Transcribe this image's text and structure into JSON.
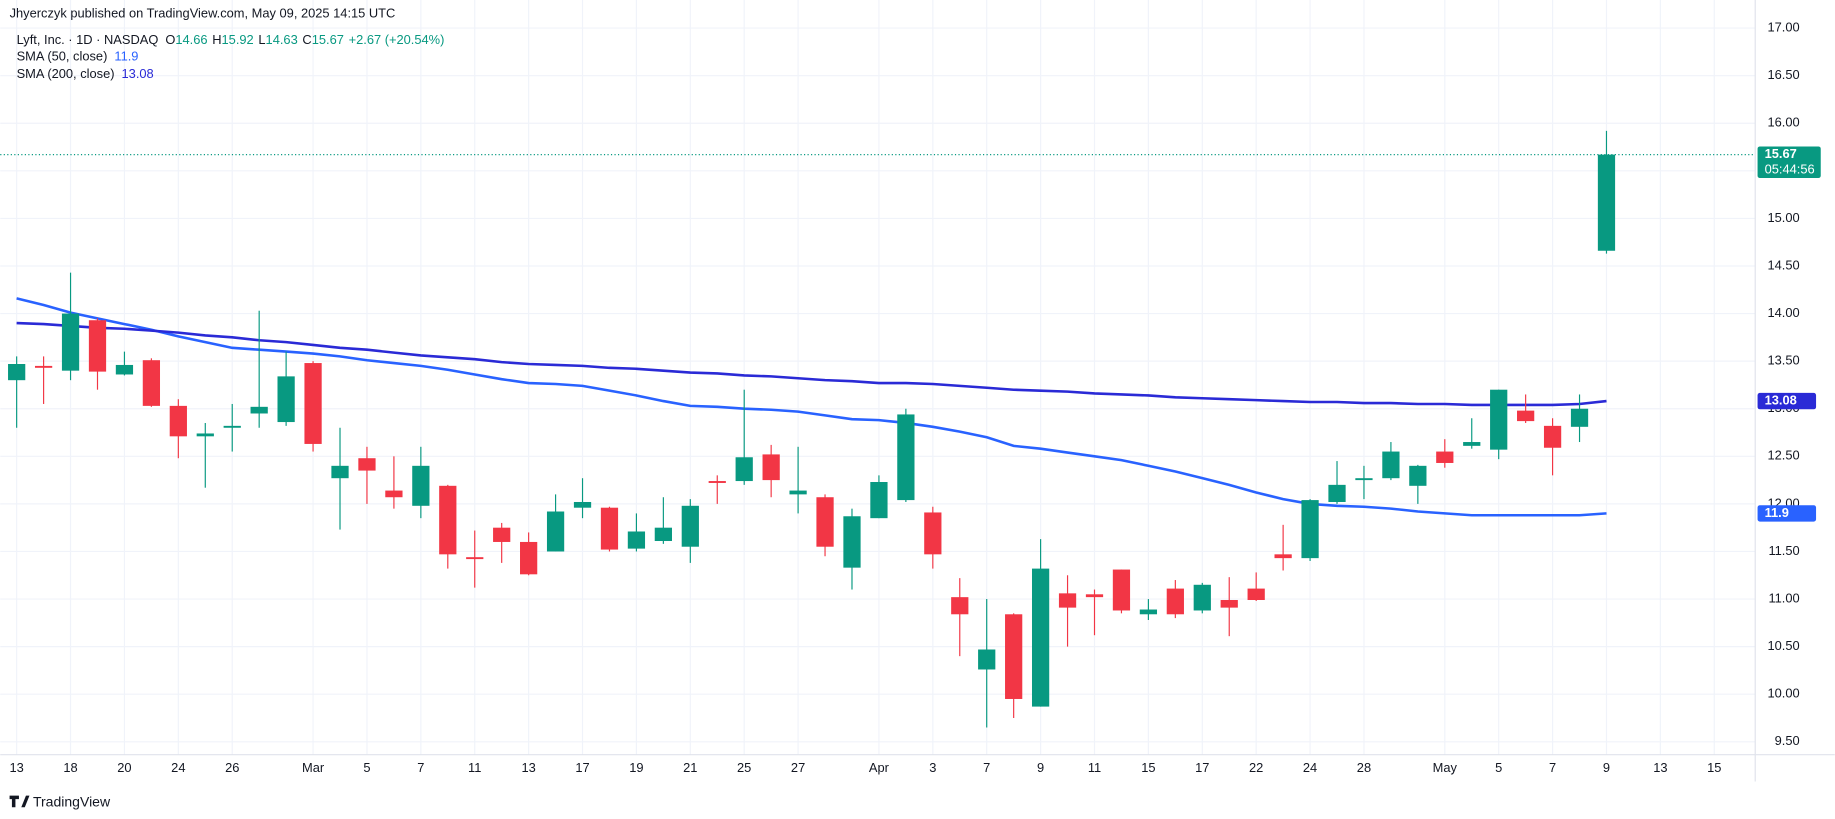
{
  "chart_data": {
    "type": "candlestick",
    "publisher_note": "Jhyerczyk published on TradingView.com, May 09, 2025 14:15 UTC",
    "symbol": "Lyft, Inc. · 1D · NASDAQ",
    "ohlc_labels": [
      "O",
      "H",
      "L",
      "C"
    ],
    "change": "+2.67 (+20.54%)",
    "countdown": "05:44:56",
    "brand": "TradingView",
    "up_color": "#089981",
    "down_color": "#f23645",
    "open": [
      13.3,
      13.45,
      13.4,
      13.93,
      13.36,
      13.51,
      13.03,
      12.71,
      12.8,
      12.95,
      12.86,
      13.48,
      12.27,
      12.48,
      12.14,
      11.98,
      12.19,
      11.44,
      11.75,
      11.6,
      11.5,
      11.96,
      11.96,
      11.53,
      11.61,
      11.55,
      12.24,
      12.24,
      12.52,
      12.1,
      12.07,
      11.33,
      11.85,
      12.04,
      11.91,
      11.02,
      10.26,
      10.84,
      9.87,
      11.06,
      11.05,
      11.31,
      10.84,
      11.11,
      10.88,
      10.99,
      11.11,
      11.47,
      11.43,
      12.02,
      12.25,
      12.27,
      12.19,
      12.55,
      12.61,
      12.57,
      12.98,
      12.82,
      12.81,
      14.66
    ],
    "high": [
      13.55,
      13.55,
      14.43,
      13.95,
      13.6,
      13.53,
      13.1,
      12.85,
      13.05,
      14.03,
      13.6,
      13.5,
      12.8,
      12.6,
      12.5,
      12.6,
      12.2,
      11.72,
      11.8,
      11.7,
      12.1,
      12.27,
      11.97,
      11.9,
      12.07,
      12.05,
      12.3,
      13.2,
      12.62,
      12.6,
      12.1,
      11.95,
      12.3,
      13.0,
      11.97,
      11.22,
      11.0,
      10.85,
      11.63,
      11.25,
      11.1,
      11.31,
      11.0,
      11.2,
      11.17,
      11.23,
      11.28,
      11.78,
      12.05,
      12.45,
      12.4,
      12.65,
      12.41,
      12.68,
      12.9,
      13.2,
      13.15,
      12.9,
      13.15,
      15.92
    ],
    "low": [
      12.8,
      13.05,
      13.3,
      13.2,
      13.35,
      13.02,
      12.48,
      12.17,
      12.55,
      12.8,
      12.82,
      12.55,
      11.73,
      12.0,
      11.95,
      11.85,
      11.32,
      11.12,
      11.38,
      11.25,
      11.5,
      11.85,
      11.5,
      11.5,
      11.58,
      11.38,
      12.0,
      12.2,
      12.07,
      11.9,
      11.45,
      11.1,
      11.85,
      12.02,
      11.32,
      10.4,
      9.65,
      9.75,
      9.87,
      10.5,
      10.62,
      10.85,
      10.78,
      10.8,
      10.85,
      10.61,
      10.98,
      11.3,
      11.4,
      12.0,
      12.05,
      12.25,
      12.0,
      12.38,
      12.58,
      12.47,
      12.85,
      12.3,
      12.65,
      14.63
    ],
    "close": [
      13.47,
      13.43,
      14.0,
      13.39,
      13.46,
      13.03,
      12.71,
      12.74,
      12.82,
      13.02,
      13.34,
      12.63,
      12.4,
      12.35,
      12.07,
      12.4,
      11.47,
      11.42,
      11.6,
      11.26,
      11.92,
      12.02,
      11.52,
      11.71,
      11.75,
      11.98,
      12.22,
      12.49,
      12.25,
      12.14,
      11.55,
      11.87,
      12.23,
      12.94,
      11.47,
      10.84,
      10.47,
      9.95,
      11.32,
      10.91,
      11.02,
      10.88,
      10.89,
      10.84,
      11.15,
      10.91,
      10.99,
      11.43,
      12.04,
      12.2,
      12.27,
      12.55,
      12.4,
      12.43,
      12.65,
      13.2,
      12.87,
      12.59,
      13.0,
      15.67
    ],
    "overlays": [
      {
        "name": "SMA (50, close)",
        "color": "#2962ff",
        "values": [
          14.16,
          14.09,
          14.01,
          13.95,
          13.89,
          13.83,
          13.76,
          13.7,
          13.64,
          13.62,
          13.6,
          13.58,
          13.55,
          13.51,
          13.48,
          13.45,
          13.41,
          13.36,
          13.31,
          13.27,
          13.26,
          13.24,
          13.19,
          13.14,
          13.08,
          13.03,
          13.02,
          13.0,
          12.99,
          12.97,
          12.93,
          12.89,
          12.88,
          12.85,
          12.81,
          12.76,
          12.7,
          12.61,
          12.58,
          12.54,
          12.5,
          12.46,
          12.4,
          12.34,
          12.27,
          12.2,
          12.12,
          12.05,
          12.0,
          11.98,
          11.97,
          11.95,
          11.92,
          11.9,
          11.88,
          11.88,
          11.88,
          11.88,
          11.88,
          11.9
        ]
      },
      {
        "name": "SMA (200, close)",
        "color": "#2a2ad6",
        "values": [
          13.9,
          13.89,
          13.87,
          13.85,
          13.84,
          13.82,
          13.8,
          13.77,
          13.75,
          13.72,
          13.7,
          13.67,
          13.64,
          13.62,
          13.59,
          13.56,
          13.54,
          13.52,
          13.49,
          13.47,
          13.46,
          13.45,
          13.43,
          13.42,
          13.4,
          13.38,
          13.37,
          13.35,
          13.34,
          13.32,
          13.3,
          13.29,
          13.27,
          13.27,
          13.26,
          13.24,
          13.22,
          13.2,
          13.19,
          13.18,
          13.16,
          13.15,
          13.14,
          13.12,
          13.11,
          13.1,
          13.09,
          13.08,
          13.07,
          13.07,
          13.06,
          13.06,
          13.05,
          13.05,
          13.04,
          13.04,
          13.04,
          13.04,
          13.05,
          13.08
        ]
      }
    ],
    "xlim": [
      -0.61,
      64.52
    ],
    "xticks": [
      {
        "value": 0,
        "label": "13"
      },
      {
        "value": 2,
        "label": "18"
      },
      {
        "value": 4,
        "label": "20"
      },
      {
        "value": 6,
        "label": "24"
      },
      {
        "value": 8,
        "label": "26"
      },
      {
        "value": 11,
        "label": "Mar"
      },
      {
        "value": 13,
        "label": "5"
      },
      {
        "value": 15,
        "label": "7"
      },
      {
        "value": 17,
        "label": "11"
      },
      {
        "value": 19,
        "label": "13"
      },
      {
        "value": 21,
        "label": "17"
      },
      {
        "value": 23,
        "label": "19"
      },
      {
        "value": 25,
        "label": "21"
      },
      {
        "value": 27,
        "label": "25"
      },
      {
        "value": 29,
        "label": "27"
      },
      {
        "value": 32,
        "label": "Apr"
      },
      {
        "value": 34,
        "label": "3"
      },
      {
        "value": 36,
        "label": "7"
      },
      {
        "value": 38,
        "label": "9"
      },
      {
        "value": 40,
        "label": "11"
      },
      {
        "value": 42,
        "label": "15"
      },
      {
        "value": 44,
        "label": "17"
      },
      {
        "value": 46,
        "label": "22"
      },
      {
        "value": 48,
        "label": "24"
      },
      {
        "value": 50,
        "label": "28"
      },
      {
        "value": 53,
        "label": "May"
      },
      {
        "value": 55,
        "label": "5"
      },
      {
        "value": 57,
        "label": "7"
      },
      {
        "value": 59,
        "label": "9"
      },
      {
        "value": 61,
        "label": "13"
      },
      {
        "value": 63,
        "label": "15"
      }
    ],
    "ylim": [
      9.365,
      17.295
    ],
    "yticks": [
      {
        "value": 9.5,
        "label": "9.50"
      },
      {
        "value": 10,
        "label": "10.00"
      },
      {
        "value": 10.5,
        "label": "10.50"
      },
      {
        "value": 11,
        "label": "11.00"
      },
      {
        "value": 11.5,
        "label": "11.50"
      },
      {
        "value": 12,
        "label": "12.00"
      },
      {
        "value": 12.5,
        "label": "12.50"
      },
      {
        "value": 13,
        "label": "13.00"
      },
      {
        "value": 13.5,
        "label": "13.50"
      },
      {
        "value": 14,
        "label": "14.00"
      },
      {
        "value": 14.5,
        "label": "14.50"
      },
      {
        "value": 15,
        "label": "15.00"
      },
      {
        "value": 15.5,
        "label": "15.50"
      },
      {
        "value": 16,
        "label": "16.00"
      },
      {
        "value": 16.5,
        "label": "16.50"
      },
      {
        "value": 17,
        "label": "17.00"
      }
    ],
    "grid": true
  }
}
